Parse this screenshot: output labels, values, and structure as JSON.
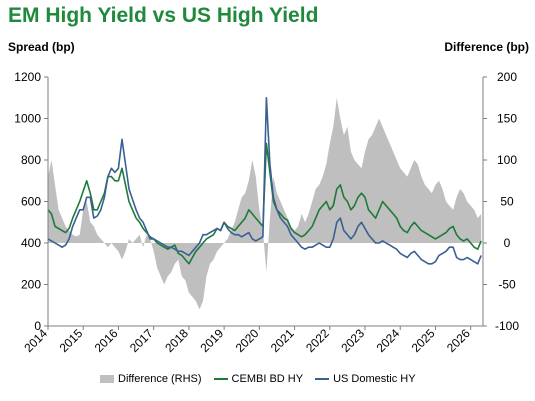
{
  "chart_data": {
    "type": "line",
    "title": "EM High Yield vs US High Yield",
    "ylabel": "Spread (bp)",
    "ylabel_right": "Difference (bp)",
    "ylim": [
      0,
      1200
    ],
    "y_ticks": [
      0,
      200,
      400,
      600,
      800,
      1000,
      1200
    ],
    "y2lim": [
      -100,
      200
    ],
    "y2_ticks": [
      -100,
      -50,
      0,
      50,
      100,
      150,
      200
    ],
    "x_ticks": [
      "2014",
      "2015",
      "2016",
      "2017",
      "2018",
      "2019",
      "2020",
      "2021",
      "2022",
      "2023",
      "2024",
      "2025",
      "2026"
    ],
    "x_range": [
      2014.0,
      2026.35
    ],
    "legend_position": "bottom",
    "grid": false,
    "series": [
      {
        "name": "Difference (RHS)",
        "type": "area",
        "axis": "right",
        "color": "#bfbfbf",
        "x": [
          2014.0,
          2014.1,
          2014.2,
          2014.3,
          2014.4,
          2014.5,
          2014.6,
          2014.7,
          2014.8,
          2014.9,
          2015.0,
          2015.1,
          2015.2,
          2015.3,
          2015.4,
          2015.5,
          2015.6,
          2015.7,
          2015.8,
          2015.9,
          2016.0,
          2016.1,
          2016.2,
          2016.3,
          2016.4,
          2016.5,
          2016.6,
          2016.7,
          2016.8,
          2016.9,
          2017.0,
          2017.1,
          2017.2,
          2017.3,
          2017.4,
          2017.5,
          2017.6,
          2017.7,
          2017.8,
          2017.9,
          2018.0,
          2018.1,
          2018.2,
          2018.3,
          2018.4,
          2018.5,
          2018.6,
          2018.7,
          2018.8,
          2018.9,
          2019.0,
          2019.1,
          2019.2,
          2019.3,
          2019.4,
          2019.5,
          2019.6,
          2019.7,
          2019.8,
          2019.9,
          2020.0,
          2020.1,
          2020.2,
          2020.3,
          2020.4,
          2020.5,
          2020.6,
          2020.7,
          2020.8,
          2020.9,
          2021.0,
          2021.1,
          2021.2,
          2021.3,
          2021.4,
          2021.5,
          2021.6,
          2021.7,
          2021.8,
          2021.9,
          2022.0,
          2022.1,
          2022.2,
          2022.3,
          2022.4,
          2022.5,
          2022.6,
          2022.7,
          2022.8,
          2022.9,
          2023.0,
          2023.1,
          2023.2,
          2023.3,
          2023.4,
          2023.5,
          2023.6,
          2023.7,
          2023.8,
          2023.9,
          2024.0,
          2024.1,
          2024.2,
          2024.3,
          2024.4,
          2024.5,
          2024.6,
          2024.7,
          2024.8,
          2024.9,
          2025.0,
          2025.1,
          2025.2,
          2025.3,
          2025.4,
          2025.5,
          2025.6,
          2025.7,
          2025.8,
          2025.9,
          2026.0,
          2026.1,
          2026.2,
          2026.3
        ],
        "values": [
          80,
          100,
          70,
          40,
          30,
          20,
          15,
          10,
          8,
          10,
          40,
          50,
          25,
          20,
          10,
          5,
          0,
          -5,
          0,
          -5,
          -10,
          -20,
          -10,
          5,
          0,
          5,
          10,
          -5,
          10,
          5,
          -10,
          -30,
          -40,
          -50,
          -40,
          -35,
          -25,
          -20,
          -40,
          -45,
          -60,
          -65,
          -70,
          -80,
          -70,
          -40,
          -25,
          -20,
          -10,
          -5,
          0,
          5,
          15,
          25,
          40,
          55,
          60,
          75,
          100,
          80,
          40,
          15,
          -35,
          30,
          80,
          60,
          50,
          40,
          30,
          20,
          15,
          20,
          35,
          25,
          35,
          50,
          65,
          70,
          80,
          95,
          120,
          140,
          175,
          150,
          130,
          140,
          110,
          100,
          95,
          90,
          110,
          125,
          130,
          140,
          150,
          140,
          130,
          120,
          110,
          100,
          90,
          85,
          80,
          90,
          100,
          95,
          80,
          70,
          65,
          60,
          70,
          75,
          65,
          50,
          45,
          40,
          55,
          65,
          60,
          50,
          45,
          40,
          30,
          35
        ]
      },
      {
        "name": "CEMBI BD HY",
        "type": "line",
        "axis": "left",
        "color": "#1f7a38",
        "x": [
          2014.0,
          2014.1,
          2014.2,
          2014.3,
          2014.4,
          2014.5,
          2014.6,
          2014.7,
          2014.8,
          2014.9,
          2015.0,
          2015.1,
          2015.2,
          2015.3,
          2015.4,
          2015.5,
          2015.6,
          2015.7,
          2015.8,
          2015.9,
          2016.0,
          2016.1,
          2016.2,
          2016.3,
          2016.4,
          2016.5,
          2016.6,
          2016.7,
          2016.8,
          2016.9,
          2017.0,
          2017.1,
          2017.2,
          2017.3,
          2017.4,
          2017.5,
          2017.6,
          2017.7,
          2017.8,
          2017.9,
          2018.0,
          2018.1,
          2018.2,
          2018.3,
          2018.4,
          2018.5,
          2018.6,
          2018.7,
          2018.8,
          2018.9,
          2019.0,
          2019.1,
          2019.2,
          2019.3,
          2019.4,
          2019.5,
          2019.6,
          2019.7,
          2019.8,
          2019.9,
          2020.0,
          2020.1,
          2020.2,
          2020.3,
          2020.4,
          2020.5,
          2020.6,
          2020.7,
          2020.8,
          2020.9,
          2021.0,
          2021.1,
          2021.2,
          2021.3,
          2021.4,
          2021.5,
          2021.6,
          2021.7,
          2021.8,
          2021.9,
          2022.0,
          2022.1,
          2022.2,
          2022.3,
          2022.4,
          2022.5,
          2022.6,
          2022.7,
          2022.8,
          2022.9,
          2023.0,
          2023.1,
          2023.2,
          2023.3,
          2023.4,
          2023.5,
          2023.6,
          2023.7,
          2023.8,
          2023.9,
          2024.0,
          2024.1,
          2024.2,
          2024.3,
          2024.4,
          2024.5,
          2024.6,
          2024.7,
          2024.8,
          2024.9,
          2025.0,
          2025.1,
          2025.2,
          2025.3,
          2025.4,
          2025.5,
          2025.6,
          2025.7,
          2025.8,
          2025.9,
          2026.0,
          2026.1,
          2026.2,
          2026.3
        ],
        "values": [
          560,
          540,
          480,
          470,
          460,
          450,
          470,
          520,
          560,
          600,
          650,
          700,
          640,
          560,
          560,
          600,
          640,
          720,
          720,
          700,
          700,
          760,
          680,
          600,
          560,
          520,
          500,
          470,
          450,
          430,
          420,
          400,
          390,
          380,
          370,
          380,
          390,
          350,
          340,
          320,
          300,
          330,
          360,
          380,
          400,
          420,
          430,
          440,
          470,
          460,
          500,
          480,
          470,
          460,
          480,
          500,
          520,
          560,
          540,
          520,
          500,
          480,
          880,
          740,
          600,
          560,
          540,
          520,
          510,
          470,
          450,
          440,
          430,
          440,
          460,
          480,
          520,
          560,
          580,
          600,
          560,
          580,
          660,
          680,
          620,
          600,
          560,
          580,
          620,
          640,
          620,
          560,
          540,
          520,
          560,
          600,
          580,
          560,
          540,
          520,
          480,
          460,
          450,
          480,
          500,
          480,
          460,
          450,
          440,
          430,
          420,
          430,
          440,
          450,
          470,
          480,
          440,
          420,
          410,
          420,
          400,
          380,
          370,
          410
        ]
      },
      {
        "name": "US Domestic HY",
        "type": "line",
        "axis": "left",
        "color": "#3a5f95",
        "x": [
          2014.0,
          2014.1,
          2014.2,
          2014.3,
          2014.4,
          2014.5,
          2014.6,
          2014.7,
          2014.8,
          2014.9,
          2015.0,
          2015.1,
          2015.2,
          2015.3,
          2015.4,
          2015.5,
          2015.6,
          2015.7,
          2015.8,
          2015.9,
          2016.0,
          2016.1,
          2016.2,
          2016.3,
          2016.4,
          2016.5,
          2016.6,
          2016.7,
          2016.8,
          2016.9,
          2017.0,
          2017.1,
          2017.2,
          2017.3,
          2017.4,
          2017.5,
          2017.6,
          2017.7,
          2017.8,
          2017.9,
          2018.0,
          2018.1,
          2018.2,
          2018.3,
          2018.4,
          2018.5,
          2018.6,
          2018.7,
          2018.8,
          2018.9,
          2019.0,
          2019.1,
          2019.2,
          2019.3,
          2019.4,
          2019.5,
          2019.6,
          2019.7,
          2019.8,
          2019.9,
          2020.0,
          2020.1,
          2020.2,
          2020.3,
          2020.4,
          2020.5,
          2020.6,
          2020.7,
          2020.8,
          2020.9,
          2021.0,
          2021.1,
          2021.2,
          2021.3,
          2021.4,
          2021.5,
          2021.6,
          2021.7,
          2021.8,
          2021.9,
          2022.0,
          2022.1,
          2022.2,
          2022.3,
          2022.4,
          2022.5,
          2022.6,
          2022.7,
          2022.8,
          2022.9,
          2023.0,
          2023.1,
          2023.2,
          2023.3,
          2023.4,
          2023.5,
          2023.6,
          2023.7,
          2023.8,
          2023.9,
          2024.0,
          2024.1,
          2024.2,
          2024.3,
          2024.4,
          2024.5,
          2024.6,
          2024.7,
          2024.8,
          2024.9,
          2025.0,
          2025.1,
          2025.2,
          2025.3,
          2025.4,
          2025.5,
          2025.6,
          2025.7,
          2025.8,
          2025.9,
          2026.0,
          2026.1,
          2026.2,
          2026.3
        ],
        "values": [
          420,
          410,
          400,
          390,
          380,
          390,
          420,
          480,
          520,
          560,
          560,
          620,
          620,
          520,
          530,
          560,
          620,
          720,
          760,
          740,
          760,
          900,
          780,
          660,
          610,
          560,
          520,
          500,
          460,
          420,
          420,
          410,
          400,
          390,
          380,
          380,
          370,
          360,
          360,
          350,
          340,
          360,
          380,
          400,
          440,
          440,
          450,
          460,
          470,
          460,
          500,
          470,
          450,
          440,
          440,
          430,
          440,
          450,
          420,
          410,
          420,
          430,
          1100,
          780,
          620,
          560,
          520,
          500,
          480,
          440,
          420,
          400,
          380,
          370,
          380,
          380,
          390,
          400,
          390,
          380,
          380,
          420,
          500,
          520,
          460,
          440,
          420,
          440,
          480,
          500,
          470,
          440,
          420,
          400,
          400,
          410,
          400,
          390,
          380,
          370,
          350,
          340,
          330,
          350,
          360,
          340,
          320,
          310,
          300,
          300,
          310,
          340,
          350,
          360,
          380,
          380,
          330,
          320,
          320,
          330,
          320,
          310,
          300,
          340
        ]
      }
    ]
  }
}
